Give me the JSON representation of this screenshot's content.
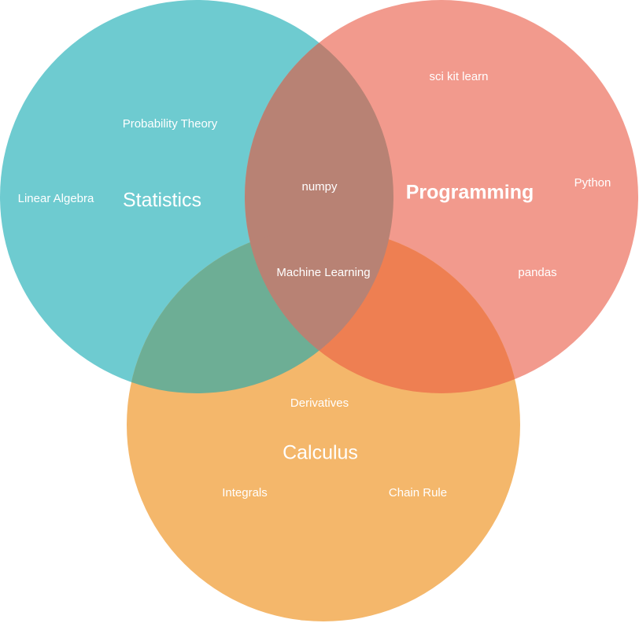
{
  "sets": [
    {
      "id": "statistics",
      "label": "Statistics",
      "color": "#6ecbd0"
    },
    {
      "id": "programming",
      "label": "Programming",
      "color": "#f29a8d"
    },
    {
      "id": "calculus",
      "label": "Calculus",
      "color": "#f4b76b"
    }
  ],
  "overlap_colors": {
    "statistics_programming": "#b88274",
    "statistics_calculus": "#6dae95",
    "programming_calculus": "#ee7f52",
    "all_three": "#b88274"
  },
  "items": {
    "statistics_only": [
      "Probability Theory",
      "Linear Algebra"
    ],
    "programming_only": [
      "sci kit learn",
      "Python",
      "pandas"
    ],
    "calculus_only": [
      "Derivatives",
      "Integrals",
      "Chain Rule"
    ],
    "statistics_programming": [
      "numpy"
    ],
    "all_three": [
      "Machine Learning"
    ]
  }
}
